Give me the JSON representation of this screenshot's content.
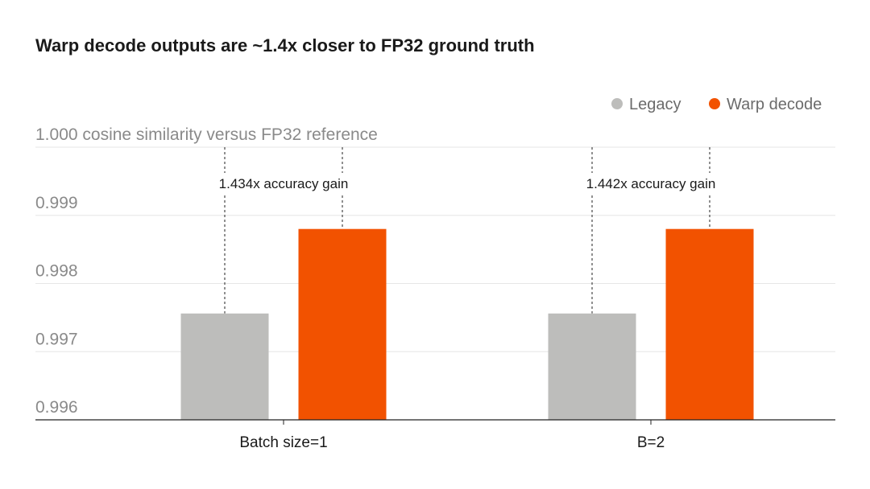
{
  "chart_data": {
    "type": "bar",
    "title": "Warp decode outputs are ~1.4x closer to FP32 ground truth",
    "ylabel": "cosine similarity versus FP32 reference",
    "ylim": [
      0.996,
      1.0
    ],
    "yticks": [
      {
        "value": 1.0,
        "label": "1.000"
      },
      {
        "value": 0.999,
        "label": "0.999"
      },
      {
        "value": 0.998,
        "label": "0.998"
      },
      {
        "value": 0.997,
        "label": "0.997"
      },
      {
        "value": 0.996,
        "label": "0.996"
      }
    ],
    "categories": [
      "Batch size=1",
      "B=2"
    ],
    "series": [
      {
        "name": "Legacy",
        "color": "#bdbdbb",
        "values": [
          0.99756,
          0.99756
        ]
      },
      {
        "name": "Warp decode",
        "color": "#f25200",
        "values": [
          0.9988,
          0.9988
        ]
      }
    ],
    "annotations": [
      "1.434x accuracy gain",
      "1.442x accuracy gain"
    ],
    "legend_position": "top-right",
    "grid": true
  }
}
